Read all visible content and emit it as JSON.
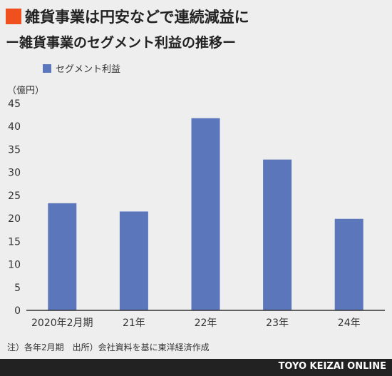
{
  "colors": {
    "background": "#eeeeee",
    "title_marker": "#f0501e",
    "bar": "#5b76bb",
    "axis": "#333333",
    "gridline": "#cccccc",
    "footer_bar": "#222222",
    "footer_text": "#ffffff"
  },
  "header": {
    "title": "雑貨事業は円安などで連続減益に",
    "subtitle": "ー雑貨事業のセグメント利益の推移ー"
  },
  "chart_data": {
    "type": "bar",
    "unit_label": "（億円）",
    "ylim": [
      0,
      45
    ],
    "yticks": [
      0,
      5,
      10,
      15,
      20,
      25,
      30,
      35,
      40,
      45
    ],
    "grid": false,
    "legend_position": "top-left",
    "categories": [
      "2020年2月期",
      "21年",
      "22年",
      "23年",
      "24年"
    ],
    "series": [
      {
        "name": "セグメント利益",
        "values": [
          23.3,
          21.5,
          41.8,
          32.8,
          19.9
        ]
      }
    ]
  },
  "footer": {
    "note": "注）各年2月期　出所）会社資料を基に東洋経済作成",
    "brand": "TOYO KEIZAI ONLINE"
  }
}
